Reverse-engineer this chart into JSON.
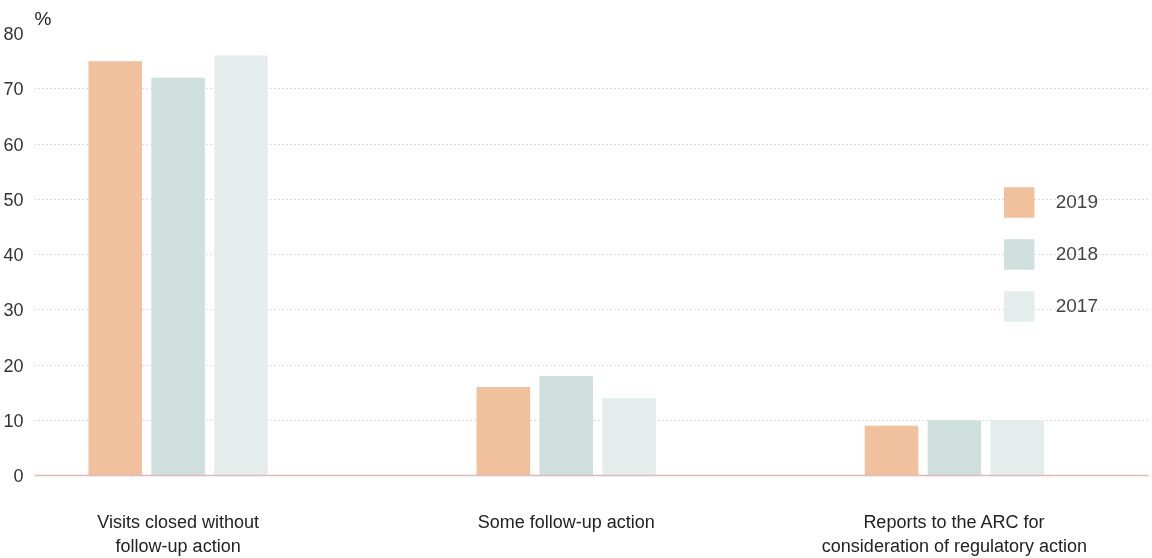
{
  "chart_data": {
    "type": "bar",
    "ylabel": "%",
    "categories": [
      "Visits closed without follow-up action",
      "Some follow-up action",
      "Reports to the ARC for consideration of regulatory action"
    ],
    "series": [
      {
        "name": "2019",
        "color": "#f0c19c",
        "values": [
          75,
          16,
          9
        ]
      },
      {
        "name": "2018",
        "color": "#cfdfdd",
        "values": [
          72,
          18,
          10
        ]
      },
      {
        "name": "2017",
        "color": "#e4edeb",
        "values": [
          76,
          14,
          10
        ]
      }
    ],
    "ylim": [
      0,
      80
    ],
    "yticks": [
      0,
      10,
      20,
      30,
      40,
      50,
      60,
      70,
      80
    ],
    "grid": "y",
    "legend": "right"
  }
}
